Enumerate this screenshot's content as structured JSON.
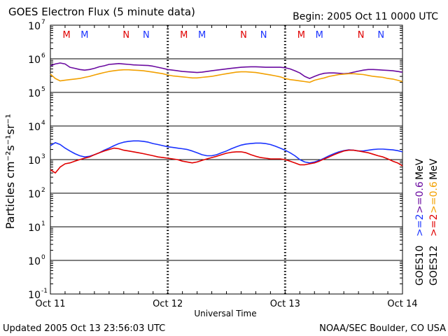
{
  "header": {
    "title": "GOES Electron Flux (5 minute data)",
    "begin": "Begin: 2005 Oct 11 0000 UTC"
  },
  "footer": {
    "updated": "Updated 2005 Oct 13 23:56:03 UTC",
    "credit": "NOAA/SEC Boulder, CO USA"
  },
  "colors": {
    "goes10_ge2": "#1a33ff",
    "goes10_ge06": "#6a0aa0",
    "goes12_ge2": "#e00000",
    "goes12_ge06": "#f2a000",
    "marker_m_n_first": "#e00000",
    "marker_m_n_second": "#1a33ff"
  },
  "chart_data": {
    "type": "line",
    "title": "GOES Electron Flux (5 minute data)",
    "xlabel": "Universal Time",
    "ylabel": "Particles cm⁻²s⁻¹sr⁻¹",
    "yscale": "log",
    "ylim": [
      0.1,
      10000000
    ],
    "xlim": [
      0,
      72
    ],
    "x_unit_note": "hours",
    "x_ticks": [
      {
        "x": 0,
        "label": "Oct 11"
      },
      {
        "x": 24,
        "label": "Oct 12"
      },
      {
        "x": 48,
        "label": "Oct 13"
      },
      {
        "x": 72,
        "label": "Oct 14"
      }
    ],
    "y_ticks": [
      {
        "base": "10",
        "exp": "7"
      },
      {
        "base": "10",
        "exp": "6"
      },
      {
        "base": "10",
        "exp": "5"
      },
      {
        "base": "10",
        "exp": "4"
      },
      {
        "base": "10",
        "exp": "3"
      },
      {
        "base": "10",
        "exp": "2"
      },
      {
        "base": "10",
        "exp": "1"
      },
      {
        "base": "10",
        "exp": "0"
      },
      {
        "base": "10",
        "exp": "-1"
      }
    ],
    "threshold": {
      "value": 1000,
      "style": "dashed"
    },
    "markers": [
      {
        "label": "M",
        "x": 3.3,
        "color": "#e00000"
      },
      {
        "label": "M",
        "x": 7.0,
        "color": "#1a33ff"
      },
      {
        "label": "N",
        "x": 15.5,
        "color": "#e00000"
      },
      {
        "label": "N",
        "x": 19.6,
        "color": "#1a33ff"
      },
      {
        "label": "M",
        "x": 27.3,
        "color": "#e00000"
      },
      {
        "label": "M",
        "x": 31.0,
        "color": "#1a33ff"
      },
      {
        "label": "N",
        "x": 39.5,
        "color": "#e00000"
      },
      {
        "label": "N",
        "x": 43.6,
        "color": "#1a33ff"
      },
      {
        "label": "M",
        "x": 51.3,
        "color": "#e00000"
      },
      {
        "label": "M",
        "x": 55.0,
        "color": "#1a33ff"
      },
      {
        "label": "N",
        "x": 63.5,
        "color": "#e00000"
      },
      {
        "label": "N",
        "x": 67.6,
        "color": "#1a33ff"
      }
    ],
    "series": [
      {
        "satellite": "GOES10",
        "energy": ">=0.6 MeV",
        "color": "#6a0aa0",
        "x": [
          0,
          1,
          2,
          3,
          4,
          5,
          6,
          7,
          8,
          9,
          10,
          11,
          12,
          13,
          14,
          15,
          16,
          17,
          18,
          19,
          20,
          21,
          22,
          23,
          24,
          25,
          26,
          27,
          28,
          29,
          30,
          31,
          32,
          33,
          34,
          35,
          36,
          37,
          38,
          39,
          40,
          41,
          42,
          43,
          44,
          45,
          46,
          47,
          48,
          49,
          50,
          51,
          52,
          53,
          54,
          55,
          56,
          57,
          58,
          59,
          60,
          61,
          62,
          63,
          64,
          65,
          66,
          67,
          68,
          69,
          70,
          71,
          72
        ],
        "y": [
          620000,
          700000,
          750000,
          700000,
          560000,
          520000,
          480000,
          460000,
          480000,
          520000,
          580000,
          620000,
          680000,
          700000,
          720000,
          700000,
          680000,
          660000,
          650000,
          640000,
          630000,
          600000,
          560000,
          520000,
          480000,
          460000,
          440000,
          420000,
          410000,
          400000,
          390000,
          400000,
          420000,
          440000,
          460000,
          480000,
          500000,
          520000,
          540000,
          560000,
          570000,
          580000,
          580000,
          570000,
          560000,
          560000,
          560000,
          560000,
          540000,
          500000,
          440000,
          380000,
          300000,
          260000,
          300000,
          340000,
          370000,
          380000,
          380000,
          370000,
          360000,
          370000,
          400000,
          430000,
          460000,
          480000,
          480000,
          470000,
          460000,
          450000,
          440000,
          420000,
          400000
        ]
      },
      {
        "satellite": "GOES12",
        "energy": ">=0.6 MeV",
        "color": "#f2a000",
        "x": [
          0,
          1,
          2,
          3,
          4,
          5,
          6,
          7,
          8,
          9,
          10,
          11,
          12,
          13,
          14,
          15,
          16,
          17,
          18,
          19,
          20,
          21,
          22,
          23,
          24,
          25,
          26,
          27,
          28,
          29,
          30,
          31,
          32,
          33,
          34,
          35,
          36,
          37,
          38,
          39,
          40,
          41,
          42,
          43,
          44,
          45,
          46,
          47,
          48,
          49,
          50,
          51,
          52,
          53,
          54,
          55,
          56,
          57,
          58,
          59,
          60,
          61,
          62,
          63,
          64,
          65,
          66,
          67,
          68,
          69,
          70,
          71,
          72
        ],
        "y": [
          350000,
          260000,
          220000,
          230000,
          240000,
          250000,
          260000,
          280000,
          300000,
          330000,
          360000,
          390000,
          420000,
          440000,
          460000,
          470000,
          470000,
          460000,
          450000,
          440000,
          420000,
          400000,
          380000,
          360000,
          330000,
          310000,
          300000,
          290000,
          280000,
          270000,
          270000,
          280000,
          290000,
          300000,
          320000,
          340000,
          360000,
          380000,
          400000,
          410000,
          410000,
          400000,
          390000,
          370000,
          350000,
          330000,
          310000,
          290000,
          260000,
          240000,
          230000,
          220000,
          210000,
          200000,
          230000,
          250000,
          270000,
          300000,
          320000,
          340000,
          350000,
          360000,
          360000,
          350000,
          340000,
          320000,
          300000,
          290000,
          280000,
          260000,
          250000,
          230000,
          210000
        ]
      },
      {
        "satellite": "GOES10",
        "energy": ">=2 MeV",
        "color": "#1a33ff",
        "x": [
          0,
          1,
          2,
          3,
          4,
          5,
          6,
          7,
          8,
          9,
          10,
          11,
          12,
          13,
          14,
          15,
          16,
          17,
          18,
          19,
          20,
          21,
          22,
          23,
          24,
          25,
          26,
          27,
          28,
          29,
          30,
          31,
          32,
          33,
          34,
          35,
          36,
          37,
          38,
          39,
          40,
          41,
          42,
          43,
          44,
          45,
          46,
          47,
          48,
          49,
          50,
          51,
          52,
          53,
          54,
          55,
          56,
          57,
          58,
          59,
          60,
          61,
          62,
          63,
          64,
          65,
          66,
          67,
          68,
          69,
          70,
          71,
          72
        ],
        "y": [
          2600,
          3200,
          2800,
          2200,
          1800,
          1500,
          1300,
          1200,
          1250,
          1400,
          1600,
          1900,
          2200,
          2600,
          3000,
          3300,
          3500,
          3600,
          3600,
          3500,
          3300,
          3000,
          2800,
          2600,
          2400,
          2300,
          2200,
          2100,
          2000,
          1800,
          1600,
          1400,
          1300,
          1300,
          1400,
          1600,
          1800,
          2100,
          2400,
          2700,
          2900,
          3000,
          3100,
          3100,
          3000,
          2800,
          2500,
          2200,
          1900,
          1600,
          1300,
          1000,
          850,
          800,
          850,
          950,
          1100,
          1300,
          1500,
          1700,
          1850,
          1950,
          1900,
          1800,
          1800,
          1900,
          2000,
          2050,
          2050,
          2000,
          1950,
          1850,
          1700
        ]
      },
      {
        "satellite": "GOES12",
        "energy": ">=2 MeV",
        "color": "#e00000",
        "x": [
          0,
          1,
          2,
          3,
          4,
          5,
          6,
          7,
          8,
          9,
          10,
          11,
          12,
          13,
          14,
          15,
          16,
          17,
          18,
          19,
          20,
          21,
          22,
          23,
          24,
          25,
          26,
          27,
          28,
          29,
          30,
          31,
          32,
          33,
          34,
          35,
          36,
          37,
          38,
          39,
          40,
          41,
          42,
          43,
          44,
          45,
          46,
          47,
          48,
          49,
          50,
          51,
          52,
          53,
          54,
          55,
          56,
          57,
          58,
          59,
          60,
          61,
          62,
          63,
          64,
          65,
          66,
          67,
          68,
          69,
          70,
          71,
          72
        ],
        "y": [
          500,
          400,
          600,
          750,
          800,
          900,
          1000,
          1100,
          1200,
          1400,
          1600,
          1800,
          2000,
          2200,
          2100,
          1900,
          1800,
          1700,
          1600,
          1500,
          1400,
          1300,
          1200,
          1150,
          1100,
          1050,
          1000,
          900,
          850,
          800,
          850,
          950,
          1050,
          1150,
          1250,
          1400,
          1550,
          1650,
          1700,
          1700,
          1600,
          1400,
          1250,
          1150,
          1100,
          1050,
          1050,
          1050,
          1000,
          900,
          800,
          700,
          700,
          750,
          800,
          900,
          1050,
          1200,
          1400,
          1600,
          1800,
          1900,
          1900,
          1800,
          1700,
          1600,
          1450,
          1300,
          1200,
          1050,
          900,
          800,
          650
        ]
      }
    ],
    "right_labels": {
      "goes10": "GOES10",
      "goes12": "GOES12",
      "g10_ge2": ">=2",
      "g10_ge06": ">=0.6",
      "g12_ge2": ">=2",
      "g12_ge06": ">=0.6",
      "unit": "MeV"
    }
  }
}
